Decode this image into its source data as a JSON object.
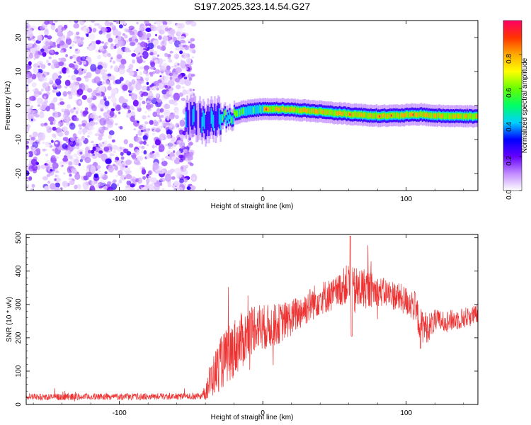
{
  "title": "S197.2025.323.14.54.G27",
  "chart_data": [
    {
      "type": "heatmap",
      "name": "spectrogram",
      "xlabel": "Height of straight line (km)",
      "ylabel": "Frequency (Hz)",
      "xlim": [
        -165,
        150
      ],
      "ylim": [
        -25,
        25
      ],
      "xticks": [
        -100,
        0,
        100
      ],
      "yticks": [
        -20,
        -10,
        0,
        10,
        20
      ],
      "noise_region_x": [
        -165,
        -52
      ],
      "signal_ridge": {
        "x": [
          -52,
          -45,
          -40,
          -35,
          -30,
          -25,
          -20,
          -15,
          -10,
          -5,
          0,
          10,
          20,
          30,
          40,
          50,
          60,
          70,
          80,
          90,
          100,
          110,
          120,
          130,
          140,
          148
        ],
        "freq": [
          -4,
          -3.5,
          -5,
          -4,
          -3.8,
          -3.5,
          -2.5,
          -1.8,
          -1.5,
          -1.2,
          -1.0,
          -1.0,
          -1.2,
          -1.5,
          -1.8,
          -2.2,
          -2.5,
          -2.8,
          -3.0,
          -3.0,
          -2.8,
          -2.6,
          -3.0,
          -3.1,
          -3.1,
          -3.2
        ]
      },
      "colorbar": {
        "label": "Normalized spectral amplitude",
        "range": [
          0,
          1
        ],
        "ticks": [
          "0.0",
          "0.2",
          "0.4",
          "0.6",
          "0.8"
        ],
        "colors": [
          "#ffffff",
          "#c28bff",
          "#6600ff",
          "#0000ff",
          "#00d0ff",
          "#00ff66",
          "#66ff00",
          "#ffff00",
          "#ffaa00",
          "#ff3300",
          "#ff0066"
        ]
      }
    },
    {
      "type": "line",
      "name": "snr",
      "xlabel": "Height of straight line (km)",
      "ylabel": "SNR (10 * v/v)",
      "xlim": [
        -165,
        150
      ],
      "ylim": [
        0,
        510
      ],
      "xticks": [
        -100,
        0,
        100
      ],
      "yticks": [
        0,
        100,
        200,
        300,
        400,
        500
      ],
      "color": "#ee3333",
      "envelope": {
        "x": [
          -165,
          -60,
          -42,
          -38,
          -30,
          -20,
          -10,
          -5,
          0,
          10,
          20,
          30,
          40,
          50,
          55,
          60,
          62,
          65,
          70,
          80,
          90,
          100,
          105,
          110,
          115,
          120,
          130,
          140,
          150
        ],
        "y": [
          22,
          24,
          25,
          60,
          120,
          170,
          210,
          240,
          230,
          240,
          260,
          290,
          320,
          330,
          350,
          365,
          330,
          340,
          350,
          340,
          330,
          310,
          300,
          240,
          230,
          250,
          250,
          260,
          270
        ]
      },
      "spread": {
        "x": [
          -165,
          -42,
          -38,
          -30,
          -20,
          -10,
          0,
          20,
          50,
          60,
          62,
          80,
          100,
          110,
          120,
          150
        ],
        "y": [
          10,
          10,
          50,
          80,
          90,
          80,
          70,
          55,
          50,
          60,
          80,
          45,
          45,
          55,
          35,
          30
        ]
      }
    }
  ]
}
